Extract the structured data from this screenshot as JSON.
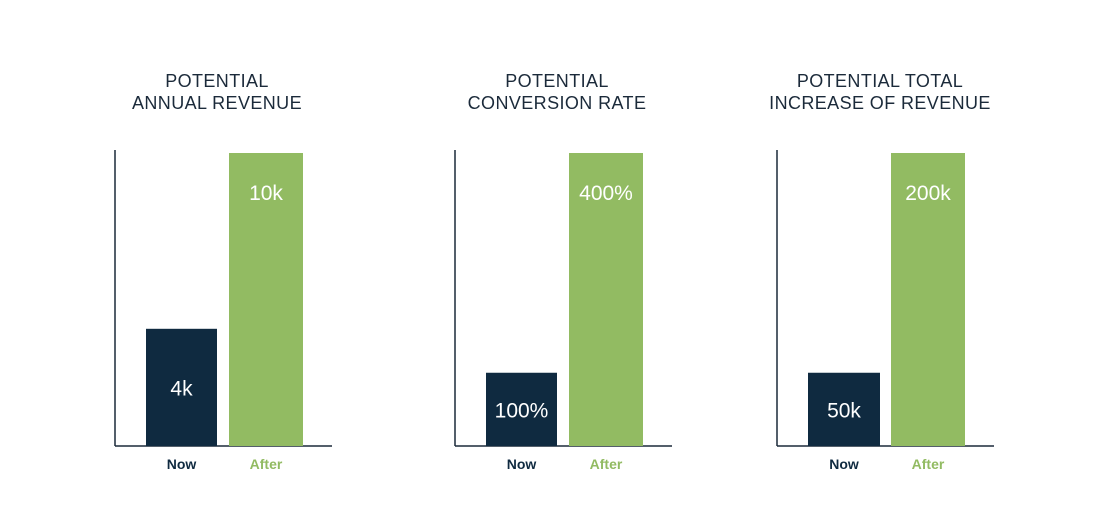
{
  "colors": {
    "now": "#0f2a40",
    "after": "#92bb62",
    "axis": "#1b2a3a",
    "title": "#1b2a3a",
    "value_text": "#ffffff"
  },
  "chart_data": [
    {
      "type": "bar",
      "title_lines": [
        "POTENTIAL",
        "ANNUAL REVENUE"
      ],
      "categories": [
        "Now",
        "After"
      ],
      "values": [
        4,
        10
      ],
      "value_labels": [
        "4k",
        "10k"
      ],
      "unit": "k",
      "ylim": [
        0,
        10
      ],
      "grid": false,
      "axes": "left and bottom lines only, no tick labels"
    },
    {
      "type": "bar",
      "title_lines": [
        "POTENTIAL",
        "CONVERSION RATE"
      ],
      "categories": [
        "Now",
        "After"
      ],
      "values": [
        100,
        400
      ],
      "value_labels": [
        "100%",
        "400%"
      ],
      "unit": "%",
      "ylim": [
        0,
        400
      ],
      "grid": false,
      "axes": "left and bottom lines only, no tick labels"
    },
    {
      "type": "bar",
      "title_lines": [
        "POTENTIAL TOTAL",
        "INCREASE OF REVENUE"
      ],
      "categories": [
        "Now",
        "After"
      ],
      "values": [
        50,
        200
      ],
      "value_labels": [
        "50k",
        "200k"
      ],
      "unit": "k",
      "ylim": [
        0,
        200
      ],
      "grid": false,
      "axes": "left and bottom lines only, no tick labels"
    }
  ]
}
